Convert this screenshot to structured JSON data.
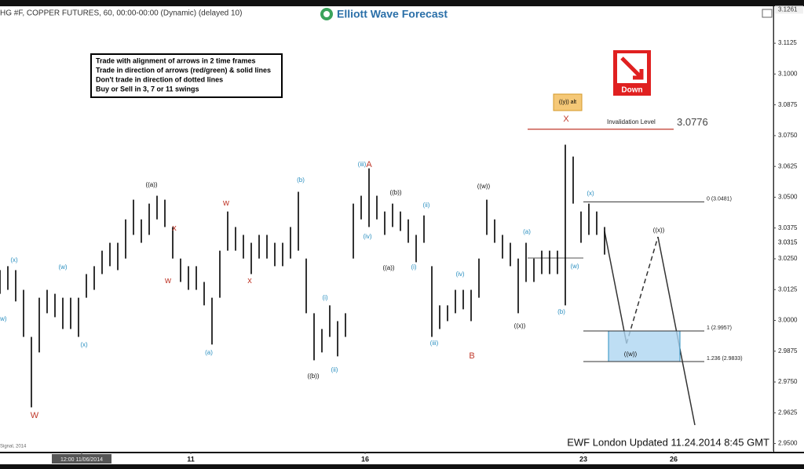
{
  "chart_data": {
    "type": "ohlc",
    "header": "HG #F, COPPER FUTURES, 60, 00:00-00:00 (Dynamic) (delayed 10)",
    "logo": "Elliott Wave Forecast",
    "rules": [
      "Trade with alignment of arrows in 2 time frames",
      "Trade in direction of arrows (red/green) & solid lines",
      "Don't trade in direction of dotted lines",
      "Buy or Sell in 3, 7 or 11 swings"
    ],
    "signal": "Down",
    "alt_label": "((y)) alt",
    "invalidation": {
      "text": "Invalidation Level",
      "value": 3.0776,
      "label": "3.0776"
    },
    "fib_levels": [
      {
        "value": 3.0481,
        "label": "0 (3.0481)"
      },
      {
        "value": 2.9957,
        "label": "1 (2.9957)"
      },
      {
        "value": 2.9833,
        "label": "1.236 (2.9833)"
      }
    ],
    "footer": "EWF London Updated 11.24.2014 8:45 GMT",
    "signal_credit": "Signal, 2014",
    "color": "#000000",
    "x": [
      0,
      1,
      2,
      3,
      4,
      5,
      6,
      7,
      8,
      9,
      10,
      11,
      12,
      13,
      14,
      15,
      16,
      17,
      18,
      19,
      20,
      21,
      22,
      23,
      24,
      25,
      26,
      27,
      28,
      29,
      30,
      31,
      32,
      33,
      34,
      35,
      36,
      37,
      38,
      39,
      40,
      41,
      42,
      43,
      44,
      45,
      46,
      47,
      48,
      49,
      50,
      51,
      52,
      53,
      54,
      55,
      56,
      57,
      58,
      59,
      60,
      61,
      62,
      63,
      64,
      65,
      66,
      67,
      68,
      69,
      70,
      71,
      72,
      73,
      74,
      75,
      76,
      77
    ],
    "high": [
      3.0204,
      3.022,
      3.0204,
      3.0124,
      2.9933,
      3.0092,
      3.0124,
      3.0108,
      3.0092,
      3.0092,
      3.0092,
      3.0188,
      3.022,
      3.0283,
      3.0315,
      3.0315,
      3.041,
      3.049,
      3.041,
      3.0474,
      3.0506,
      3.049,
      3.0379,
      3.0251,
      3.022,
      3.022,
      3.0156,
      3.0092,
      3.0283,
      3.0442,
      3.0379,
      3.0347,
      3.0315,
      3.0347,
      3.0347,
      3.0315,
      3.0315,
      3.0379,
      3.0522,
      3.0251,
      3.0029,
      2.9965,
      3.0061,
      2.9997,
      3.0029,
      3.0474,
      3.0506,
      3.0617,
      3.0506,
      3.0442,
      3.0474,
      3.0442,
      3.041,
      3.0347,
      3.0426,
      3.022,
      3.0061,
      3.0061,
      3.0124,
      3.0124,
      3.0124,
      3.0251,
      3.049,
      3.041,
      3.0347,
      3.0315,
      3.0251,
      3.0315,
      3.0251,
      3.0283,
      3.0283,
      3.0283,
      3.0713,
      3.0665,
      3.0442,
      3.0474,
      3.0442,
      3.0379
    ],
    "low": [
      3.0108,
      3.0124,
      3.0077,
      2.9933,
      2.9647,
      2.987,
      3.0029,
      3.0013,
      2.9965,
      2.9965,
      2.9933,
      3.0092,
      3.0124,
      3.0188,
      3.022,
      3.0204,
      3.0251,
      3.0347,
      3.0315,
      3.0347,
      3.041,
      3.0379,
      3.0251,
      3.0156,
      3.0124,
      3.0124,
      3.0061,
      2.9902,
      3.0092,
      3.0283,
      3.0283,
      3.0251,
      3.0188,
      3.0251,
      3.0251,
      3.022,
      3.022,
      3.0251,
      3.0283,
      3.0029,
      2.9838,
      2.987,
      2.9933,
      2.9854,
      2.9933,
      3.0251,
      3.041,
      3.0379,
      3.041,
      3.0347,
      3.0379,
      3.0363,
      3.0315,
      3.0236,
      3.0315,
      2.9933,
      2.9965,
      2.9997,
      3.0029,
      3.0045,
      2.9997,
      3.0092,
      3.0347,
      3.0315,
      3.0251,
      3.022,
      3.0029,
      3.0156,
      3.0156,
      3.0188,
      3.0188,
      3.0188,
      3.0061,
      3.0474,
      3.0315,
      3.0347,
      3.0347,
      3.0267
    ],
    "xlim": [
      0,
      98.5
    ],
    "xticks": [
      {
        "value": 10.4,
        "label": "12:00 11/06/2014"
      },
      {
        "value": 24.3,
        "label": "11"
      },
      {
        "value": 46.5,
        "label": "16"
      },
      {
        "value": 74.3,
        "label": "23"
      },
      {
        "value": 85.8,
        "label": "26"
      }
    ],
    "ylim": [
      2.947,
      3.1275
    ],
    "yticks": [
      {
        "value": 2.95,
        "label": "2.9500"
      },
      {
        "value": 2.9625,
        "label": "2.9625"
      },
      {
        "value": 2.975,
        "label": "2.9750"
      },
      {
        "value": 2.9875,
        "label": "2.9875"
      },
      {
        "value": 3.0,
        "label": "3.0000"
      },
      {
        "value": 3.0125,
        "label": "3.0125"
      },
      {
        "value": 3.025,
        "label": "3.0250"
      },
      {
        "value": 3.0375,
        "label": "3.0375"
      },
      {
        "value": 3.05,
        "label": "3.0500"
      },
      {
        "value": 3.0625,
        "label": "3.0625"
      },
      {
        "value": 3.075,
        "label": "3.0750"
      },
      {
        "value": 3.0875,
        "label": "3.0875"
      },
      {
        "value": 3.1,
        "label": "3.1000"
      },
      {
        "value": 3.1125,
        "label": "3.1125"
      }
    ],
    "last_price": {
      "value": 3.0315,
      "label": "3.0315"
    },
    "high_price": {
      "value": 3.1261,
      "label": "3.1261"
    },
    "wave_labels": {
      "blue": {
        "color": "#2a8fc0",
        "texts": [
          "(x)",
          "(w)",
          "(w)",
          "(x)",
          "(a)",
          "(b)",
          "(iii)",
          "(iv)",
          "(i)",
          "(ii)",
          "(ii)",
          "(i)",
          "(iii)",
          "(iv)",
          "(a)",
          "(b)",
          "(x)",
          "(w)"
        ]
      },
      "black": {
        "color": "#111111",
        "texts": [
          "((a))",
          "((b))",
          "((b))",
          "((a))",
          "((w))",
          "((x))",
          "((x))",
          "((w))"
        ]
      },
      "red": {
        "color": "#c0392b",
        "texts": [
          "W",
          "w",
          "x",
          "w",
          "x",
          "A",
          "B",
          "X"
        ]
      }
    }
  }
}
